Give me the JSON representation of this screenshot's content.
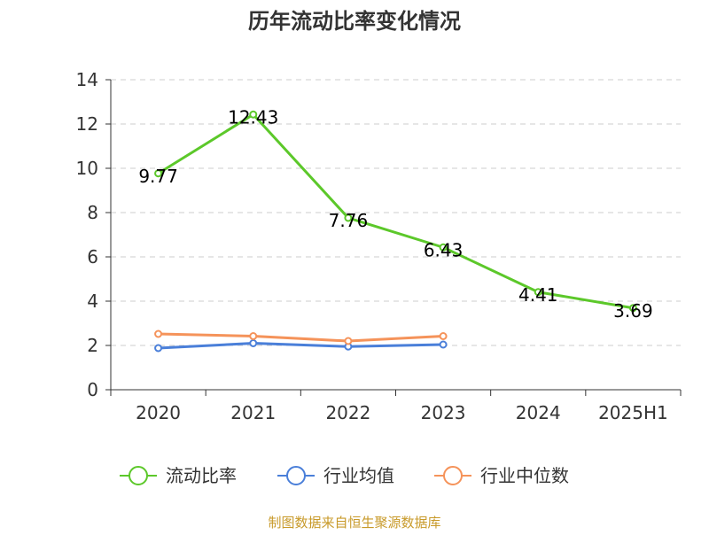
{
  "chart_data": {
    "type": "line",
    "title": "历年流动比率变化情况",
    "categories": [
      "2020",
      "2021",
      "2022",
      "2023",
      "2024",
      "2025H1"
    ],
    "ylim": [
      0,
      14
    ],
    "yticks": [
      0,
      2,
      4,
      6,
      8,
      10,
      12,
      14
    ],
    "grid": true,
    "legend_position": "bottom",
    "series": [
      {
        "name": "流动比率",
        "color": "#5cc82a",
        "values": [
          9.77,
          12.43,
          7.76,
          6.43,
          4.41,
          3.69
        ],
        "labels": [
          "9.77",
          "12.43",
          "7.76",
          "6.43",
          "4.41",
          "3.69"
        ]
      },
      {
        "name": "行业均值",
        "color": "#4a7fd9",
        "values": [
          1.88,
          2.1,
          1.95,
          2.04,
          null,
          null
        ],
        "labels": []
      },
      {
        "name": "行业中位数",
        "color": "#f5935a",
        "values": [
          2.52,
          2.42,
          2.2,
          2.42,
          null,
          null
        ],
        "labels": []
      }
    ],
    "source": "制图数据来自恒生聚源数据库"
  }
}
